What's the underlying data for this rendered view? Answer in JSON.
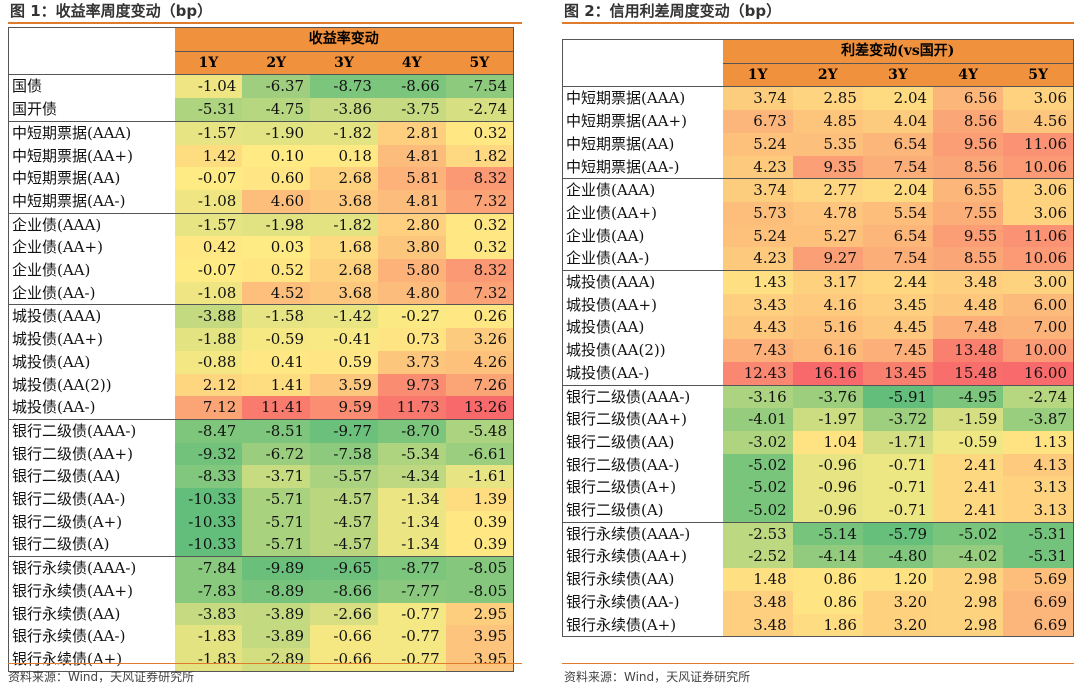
{
  "left": {
    "title": "图 1：收益率周度变动（bp）",
    "group_header": "收益率变动",
    "years": [
      "1Y",
      "2Y",
      "3Y",
      "4Y",
      "5Y"
    ],
    "source": "资料来源：Wind，天风证券研究所",
    "groups": [
      [
        {
          "label": "国债",
          "values": [
            -1.04,
            -6.37,
            -8.73,
            -8.66,
            -7.54
          ]
        },
        {
          "label": "国开债",
          "values": [
            -5.31,
            -4.75,
            -3.86,
            -3.75,
            -2.74
          ]
        }
      ],
      [
        {
          "label": "中短期票据(AAA)",
          "values": [
            -1.57,
            -1.9,
            -1.82,
            2.81,
            0.32
          ]
        },
        {
          "label": "中短期票据(AA+)",
          "values": [
            1.42,
            0.1,
            0.18,
            4.81,
            1.82
          ]
        },
        {
          "label": "中短期票据(AA)",
          "values": [
            -0.07,
            0.6,
            2.68,
            5.81,
            8.32
          ]
        },
        {
          "label": "中短期票据(AA-)",
          "values": [
            -1.08,
            4.6,
            3.68,
            4.81,
            7.32
          ]
        }
      ],
      [
        {
          "label": "企业债(AAA)",
          "values": [
            -1.57,
            -1.98,
            -1.82,
            2.8,
            0.32
          ]
        },
        {
          "label": "企业债(AA+)",
          "values": [
            0.42,
            0.03,
            1.68,
            3.8,
            0.32
          ]
        },
        {
          "label": "企业债(AA)",
          "values": [
            -0.07,
            0.52,
            2.68,
            5.8,
            8.32
          ]
        },
        {
          "label": "企业债(AA-)",
          "values": [
            -1.08,
            4.52,
            3.68,
            4.8,
            7.32
          ]
        }
      ],
      [
        {
          "label": "城投债(AAA)",
          "values": [
            -3.88,
            -1.58,
            -1.42,
            -0.27,
            0.26
          ]
        },
        {
          "label": "城投债(AA+)",
          "values": [
            -1.88,
            -0.59,
            -0.41,
            0.73,
            3.26
          ]
        },
        {
          "label": "城投债(AA)",
          "values": [
            -0.88,
            0.41,
            0.59,
            3.73,
            4.26
          ]
        },
        {
          "label": "城投债(AA(2))",
          "values": [
            2.12,
            1.41,
            3.59,
            9.73,
            7.26
          ]
        },
        {
          "label": "城投债(AA-)",
          "values": [
            7.12,
            11.41,
            9.59,
            11.73,
            13.26
          ]
        }
      ],
      [
        {
          "label": "银行二级债(AAA-)",
          "values": [
            -8.47,
            -8.51,
            -9.77,
            -8.7,
            -5.48
          ]
        },
        {
          "label": "银行二级债(AA+)",
          "values": [
            -9.32,
            -6.72,
            -7.58,
            -5.34,
            -6.61
          ]
        },
        {
          "label": "银行二级债(AA)",
          "values": [
            -8.33,
            -3.71,
            -5.57,
            -4.34,
            -1.61
          ]
        },
        {
          "label": "银行二级债(AA-)",
          "values": [
            -10.33,
            -5.71,
            -4.57,
            -1.34,
            1.39
          ]
        },
        {
          "label": "银行二级债(A+)",
          "values": [
            -10.33,
            -5.71,
            -4.57,
            -1.34,
            0.39
          ]
        },
        {
          "label": "银行二级债(A)",
          "values": [
            -10.33,
            -5.71,
            -4.57,
            -1.34,
            0.39
          ]
        }
      ],
      [
        {
          "label": "银行永续债(AAA-)",
          "values": [
            -7.84,
            -9.89,
            -9.65,
            -8.77,
            -8.05
          ]
        },
        {
          "label": "银行永续债(AA+)",
          "values": [
            -7.83,
            -8.89,
            -8.66,
            -7.77,
            -8.05
          ]
        },
        {
          "label": "银行永续债(AA)",
          "values": [
            -3.83,
            -3.89,
            -2.66,
            -0.77,
            2.95
          ]
        },
        {
          "label": "银行永续债(AA-)",
          "values": [
            -1.83,
            -3.89,
            -0.66,
            -0.77,
            3.95
          ]
        },
        {
          "label": "银行永续债(A+)",
          "values": [
            -1.83,
            -2.89,
            -0.66,
            -0.77,
            3.95
          ]
        }
      ]
    ]
  },
  "right": {
    "title": "图 2：信用利差周度变动（bp）",
    "group_header": "利差变动(vs国开)",
    "years": [
      "1Y",
      "2Y",
      "3Y",
      "4Y",
      "5Y"
    ],
    "source": "资料来源：Wind，天风证券研究所",
    "groups": [
      [
        {
          "label": "中短期票据(AAA)",
          "values": [
            3.74,
            2.85,
            2.04,
            6.56,
            3.06
          ]
        },
        {
          "label": "中短期票据(AA+)",
          "values": [
            6.73,
            4.85,
            4.04,
            8.56,
            4.56
          ]
        },
        {
          "label": "中短期票据(AA)",
          "values": [
            5.24,
            5.35,
            6.54,
            9.56,
            11.06
          ]
        },
        {
          "label": "中短期票据(AA-)",
          "values": [
            4.23,
            9.35,
            7.54,
            8.56,
            10.06
          ]
        }
      ],
      [
        {
          "label": "企业债(AAA)",
          "values": [
            3.74,
            2.77,
            2.04,
            6.55,
            3.06
          ]
        },
        {
          "label": "企业债(AA+)",
          "values": [
            5.73,
            4.78,
            5.54,
            7.55,
            3.06
          ]
        },
        {
          "label": "企业债(AA)",
          "values": [
            5.24,
            5.27,
            6.54,
            9.55,
            11.06
          ]
        },
        {
          "label": "企业债(AA-)",
          "values": [
            4.23,
            9.27,
            7.54,
            8.55,
            10.06
          ]
        }
      ],
      [
        {
          "label": "城投债(AAA)",
          "values": [
            1.43,
            3.17,
            2.44,
            3.48,
            3.0
          ]
        },
        {
          "label": "城投债(AA+)",
          "values": [
            3.43,
            4.16,
            3.45,
            4.48,
            6.0
          ]
        },
        {
          "label": "城投债(AA)",
          "values": [
            4.43,
            5.16,
            4.45,
            7.48,
            7.0
          ]
        },
        {
          "label": "城投债(AA(2))",
          "values": [
            7.43,
            6.16,
            7.45,
            13.48,
            10.0
          ]
        },
        {
          "label": "城投债(AA-)",
          "values": [
            12.43,
            16.16,
            13.45,
            15.48,
            16.0
          ]
        }
      ],
      [
        {
          "label": "银行二级债(AAA-)",
          "values": [
            -3.16,
            -3.76,
            -5.91,
            -4.95,
            -2.74
          ]
        },
        {
          "label": "银行二级债(AA+)",
          "values": [
            -4.01,
            -1.97,
            -3.72,
            -1.59,
            -3.87
          ]
        },
        {
          "label": "银行二级债(AA)",
          "values": [
            -3.02,
            1.04,
            -1.71,
            -0.59,
            1.13
          ]
        },
        {
          "label": "银行二级债(AA-)",
          "values": [
            -5.02,
            -0.96,
            -0.71,
            2.41,
            4.13
          ]
        },
        {
          "label": "银行二级债(A+)",
          "values": [
            -5.02,
            -0.96,
            -0.71,
            2.41,
            3.13
          ]
        },
        {
          "label": "银行二级债(A)",
          "values": [
            -5.02,
            -0.96,
            -0.71,
            2.41,
            3.13
          ]
        }
      ],
      [
        {
          "label": "银行永续债(AAA-)",
          "values": [
            -2.53,
            -5.14,
            -5.79,
            -5.02,
            -5.31
          ]
        },
        {
          "label": "银行永续债(AA+)",
          "values": [
            -2.52,
            -4.14,
            -4.8,
            -4.02,
            -5.31
          ]
        },
        {
          "label": "银行永续债(AA)",
          "values": [
            1.48,
            0.86,
            1.2,
            2.98,
            5.69
          ]
        },
        {
          "label": "银行永续债(AA-)",
          "values": [
            3.48,
            0.86,
            3.2,
            2.98,
            6.69
          ]
        },
        {
          "label": "银行永续债(A+)",
          "values": [
            3.48,
            1.86,
            3.2,
            2.98,
            6.69
          ]
        }
      ]
    ]
  }
}
